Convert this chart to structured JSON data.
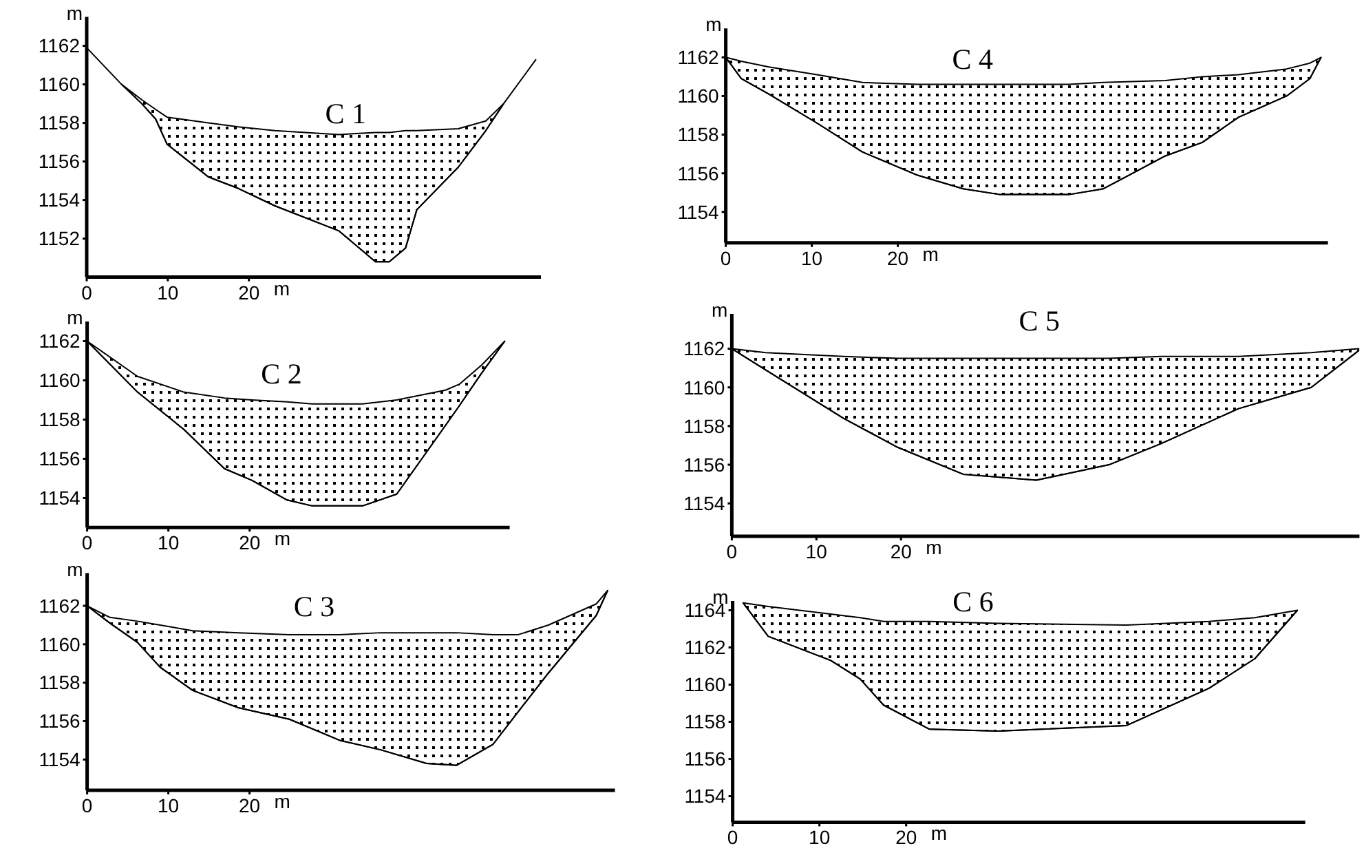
{
  "chart_data": [
    {
      "type": "line",
      "title": "C 1",
      "xlabel": "m",
      "ylabel": "m",
      "xlim": [
        0,
        56
      ],
      "xticks": [
        0,
        10,
        20
      ],
      "ylim": [
        1150,
        1163.5
      ],
      "yticks": [
        1152,
        1154,
        1156,
        1158,
        1160,
        1162
      ],
      "series": [
        {
          "color": "#000000",
          "x": [
            0,
            4.3,
            6.8,
            8.5,
            9.9,
            15.0,
            18.7,
            23.2,
            31.1,
            35.6,
            37.3,
            39.3,
            40.7,
            45.8,
            49.2,
            51.4,
            55.4
          ],
          "values": [
            1161.9,
            1160.0,
            1159.0,
            1158.2,
            1156.9,
            1155.2,
            1154.6,
            1153.7,
            1152.4,
            1150.8,
            1150.8,
            1151.5,
            1153.5,
            1155.7,
            1157.6,
            1159.0,
            1161.3
          ],
          "lower": [
            null,
            1160.0,
            1159.0,
            1158.2,
            1156.9,
            1155.2,
            1154.6,
            1153.7,
            1152.4,
            1150.8,
            1150.8,
            1151.5,
            1153.5,
            1155.7,
            1157.6,
            1159.0,
            null
          ],
          "upper": [
            null,
            1160.0,
            1159.2,
            1158.7,
            1158.3,
            1158.0,
            1157.8,
            1157.6,
            1157.4,
            1157.5,
            1157.5,
            1157.6,
            1157.6,
            1157.7,
            1158.1,
            1159.0,
            null
          ]
        }
      ]
    },
    {
      "type": "line",
      "title": "C 2",
      "xlabel": "m",
      "ylabel": "m",
      "xlim": [
        0,
        52
      ],
      "xticks": [
        0,
        10,
        20
      ],
      "ylim": [
        1152.5,
        1163
      ],
      "yticks": [
        1154,
        1156,
        1158,
        1160,
        1162
      ],
      "series": [
        {
          "color": "#000000",
          "x": [
            0,
            6.2,
            11.9,
            16.9,
            20.3,
            24.6,
            27.7,
            33.9,
            38.1,
            44.1,
            45.8,
            48.6,
            51.4
          ],
          "values": [
            1162,
            1159.4,
            1157.5,
            1155.5,
            1154.9,
            1153.9,
            1153.6,
            1153.6,
            1154.2,
            1157.7,
            1158.7,
            1160.4,
            1162
          ],
          "lower": [
            1162,
            1159.4,
            1157.5,
            1155.5,
            1154.9,
            1153.9,
            1153.6,
            1153.6,
            1154.2,
            1157.7,
            1158.7,
            1160.4,
            1162
          ],
          "upper": [
            1162,
            1160.2,
            1159.4,
            1159.1,
            1159.0,
            1158.9,
            1158.8,
            1158.8,
            1159.0,
            1159.5,
            1159.8,
            1160.8,
            1162
          ]
        }
      ]
    },
    {
      "type": "line",
      "title": "C 3",
      "xlabel": "m",
      "ylabel": "m",
      "xlim": [
        0,
        65
      ],
      "xticks": [
        0,
        10,
        20
      ],
      "ylim": [
        1152.4,
        1163.7
      ],
      "yticks": [
        1154,
        1156,
        1158,
        1160,
        1162
      ],
      "series": [
        {
          "color": "#000000",
          "x": [
            0,
            2.8,
            6.2,
            9.0,
            13.0,
            18.6,
            24.9,
            31.1,
            36.2,
            41.8,
            45.5,
            50.0,
            53.1,
            56.8,
            62.7,
            64.1
          ],
          "values": [
            1162,
            1161.1,
            1160.1,
            1158.8,
            1157.6,
            1156.7,
            1156.1,
            1155.0,
            1154.5,
            1153.8,
            1153.7,
            1154.8,
            1156.5,
            1158.5,
            1161.5,
            1162.8
          ],
          "lower": [
            1162,
            1161.1,
            1160.1,
            1158.8,
            1157.6,
            1156.7,
            1156.1,
            1155.0,
            1154.5,
            1153.8,
            1153.7,
            1154.8,
            1156.5,
            1158.5,
            1161.5,
            1162.8
          ],
          "upper": [
            1162,
            1161.4,
            1161.2,
            1161.0,
            1160.7,
            1160.6,
            1160.5,
            1160.5,
            1160.6,
            1160.6,
            1160.6,
            1160.5,
            1160.5,
            1161.0,
            1162.1,
            1162.8
          ]
        }
      ]
    },
    {
      "type": "line",
      "title": "C 4",
      "xlabel": "m",
      "ylabel": "m",
      "xlim": [
        0,
        70
      ],
      "xticks": [
        0,
        10,
        20
      ],
      "ylim": [
        1152.4,
        1163.5
      ],
      "yticks": [
        1154,
        1156,
        1158,
        1160,
        1162
      ],
      "series": [
        {
          "color": "#000000",
          "x": [
            0,
            1.8,
            5.0,
            10.6,
            15.9,
            22.3,
            27.6,
            31.9,
            39.9,
            43.9,
            51.1,
            55.4,
            59.6,
            65.2,
            67.9,
            69.2
          ],
          "values": [
            1162,
            1160.9,
            1160.1,
            1158.6,
            1157.1,
            1155.9,
            1155.2,
            1154.9,
            1154.9,
            1155.2,
            1156.9,
            1157.6,
            1158.9,
            1160.0,
            1160.9,
            1162
          ],
          "lower": [
            1162,
            1160.9,
            1160.1,
            1158.6,
            1157.1,
            1155.9,
            1155.2,
            1154.9,
            1154.9,
            1155.2,
            1156.9,
            1157.6,
            1158.9,
            1160.0,
            1160.9,
            1162
          ],
          "upper": [
            1162,
            1161.8,
            1161.5,
            1161.1,
            1160.7,
            1160.6,
            1160.6,
            1160.6,
            1160.6,
            1160.7,
            1160.8,
            1161.0,
            1161.1,
            1161.4,
            1161.7,
            1162
          ]
        }
      ]
    },
    {
      "type": "line",
      "title": "C 5",
      "xlabel": "m",
      "ylabel": "m",
      "xlim": [
        0,
        74.2
      ],
      "xticks": [
        0,
        10,
        20
      ],
      "ylim": [
        1152.3,
        1163.8
      ],
      "yticks": [
        1154,
        1156,
        1158,
        1160,
        1162
      ],
      "series": [
        {
          "color": "#000000",
          "x": [
            0,
            4.0,
            13.2,
            19.6,
            27.4,
            36.0,
            44.6,
            50.8,
            59.9,
            68.5,
            74.1
          ],
          "values": [
            1162,
            1160.9,
            1158.4,
            1156.9,
            1155.5,
            1155.2,
            1156.0,
            1157.1,
            1158.9,
            1160.0,
            1161.9
          ],
          "lower": [
            1162,
            1160.9,
            1158.4,
            1156.9,
            1155.5,
            1155.2,
            1156.0,
            1157.1,
            1158.9,
            1160.0,
            1161.9
          ],
          "upper": [
            1162,
            1161.8,
            1161.6,
            1161.5,
            1161.5,
            1161.5,
            1161.5,
            1161.6,
            1161.6,
            1161.8,
            1162
          ]
        }
      ]
    },
    {
      "type": "line",
      "title": "C 6",
      "xlabel": "m",
      "ylabel": "m",
      "xlim": [
        0,
        66
      ],
      "xticks": [
        0,
        10,
        20
      ],
      "ylim": [
        1152.6,
        1164.5
      ],
      "yticks": [
        1154,
        1156,
        1158,
        1160,
        1162,
        1164
      ],
      "series": [
        {
          "color": "#000000",
          "x": [
            1.2,
            4.1,
            11.3,
            14.7,
            17.4,
            22.7,
            30.6,
            45.4,
            54.9,
            60.2,
            65.1
          ],
          "values": [
            1164.4,
            1162.6,
            1161.3,
            1160.3,
            1158.9,
            1157.6,
            1157.5,
            1157.8,
            1159.8,
            1161.4,
            1164.0
          ],
          "lower": [
            1164.4,
            1162.6,
            1161.3,
            1160.3,
            1158.9,
            1157.6,
            1157.5,
            1157.8,
            1159.8,
            1161.4,
            1164.0
          ],
          "upper": [
            1164.4,
            1164.2,
            1163.8,
            1163.6,
            1163.4,
            1163.4,
            1163.3,
            1163.2,
            1163.4,
            1163.6,
            1164.0
          ]
        }
      ]
    }
  ]
}
